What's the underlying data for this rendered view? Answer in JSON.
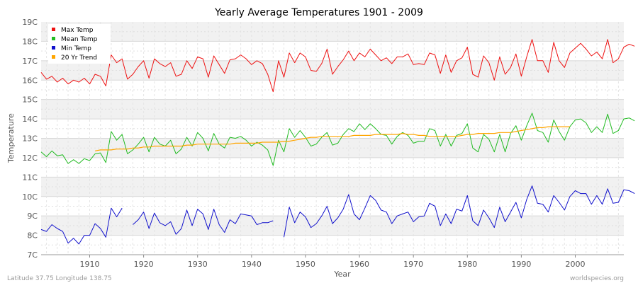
{
  "footer": {
    "location": "Latitude 37.75 Longitude 138.75",
    "source": "worldspecies.org"
  },
  "colors": {
    "max": "#ee1111",
    "mean": "#22bb22",
    "min": "#1111cc",
    "trend": "#ffa500"
  },
  "chart_data": {
    "type": "line",
    "title": "Yearly Average Temperatures 1901 - 2009",
    "xlabel": "Year",
    "ylabel": "Temperature",
    "xlim": [
      1901,
      2009
    ],
    "ylim": [
      7,
      19
    ],
    "x_ticks": [
      1910,
      1920,
      1930,
      1940,
      1950,
      1960,
      1970,
      1980,
      1990,
      2000
    ],
    "y_ticks": [
      7,
      8,
      9,
      10,
      11,
      12,
      13,
      14,
      15,
      16,
      17,
      18,
      19
    ],
    "y_tick_labels": [
      "7C",
      "8C",
      "9C",
      "10C",
      "11C",
      "12C",
      "13C",
      "14C",
      "15C",
      "16C",
      "17C",
      "18C",
      "19C"
    ],
    "legend_position": "top-left",
    "series": [
      {
        "name": "Max Temp",
        "color_key": "max",
        "x_start": 1901,
        "values": [
          16.4,
          16.05,
          16.2,
          15.9,
          16.1,
          15.8,
          16.0,
          15.9,
          16.1,
          15.8,
          16.3,
          16.2,
          15.7,
          17.3,
          16.9,
          17.1,
          16.05,
          16.3,
          16.7,
          17.0,
          16.1,
          17.1,
          16.85,
          16.7,
          16.9,
          16.2,
          16.3,
          17.0,
          16.6,
          17.2,
          17.1,
          16.15,
          17.25,
          16.8,
          16.35,
          17.05,
          17.1,
          17.3,
          17.1,
          16.8,
          17.0,
          16.85,
          16.3,
          15.4,
          17.0,
          16.15,
          17.4,
          16.9,
          17.4,
          17.2,
          16.5,
          16.45,
          16.85,
          17.6,
          16.3,
          16.7,
          17.05,
          17.5,
          17.0,
          17.4,
          17.2,
          17.6,
          17.3,
          17.0,
          17.15,
          16.85,
          17.2,
          17.2,
          17.35,
          16.8,
          16.85,
          16.8,
          17.4,
          17.3,
          16.35,
          17.3,
          16.4,
          17.0,
          17.15,
          17.7,
          16.3,
          16.15,
          17.25,
          16.9,
          16.0,
          17.2,
          16.3,
          16.65,
          17.35,
          16.2,
          17.2,
          18.1,
          17.0,
          17.0,
          16.4,
          17.95,
          17.0,
          16.65,
          17.4,
          17.65,
          17.9,
          17.6,
          17.25,
          17.45,
          17.1,
          18.1,
          16.9,
          17.1,
          17.7,
          17.85,
          17.75
        ]
      },
      {
        "name": "Mean Temp",
        "color_key": "mean",
        "x_start": 1901,
        "values": [
          12.3,
          12.05,
          12.35,
          12.1,
          12.15,
          11.7,
          11.9,
          11.7,
          11.95,
          11.85,
          12.2,
          12.25,
          11.75,
          13.35,
          12.9,
          13.2,
          12.2,
          12.4,
          12.7,
          13.05,
          12.3,
          13.05,
          12.7,
          12.6,
          12.9,
          12.2,
          12.45,
          13.05,
          12.6,
          13.3,
          13.0,
          12.35,
          13.25,
          12.7,
          12.5,
          13.05,
          13.0,
          13.1,
          12.9,
          12.6,
          12.8,
          12.65,
          12.4,
          11.6,
          12.9,
          12.3,
          13.5,
          13.05,
          13.4,
          13.05,
          12.6,
          12.7,
          13.05,
          13.3,
          12.65,
          12.75,
          13.2,
          13.5,
          13.35,
          13.75,
          13.45,
          13.75,
          13.5,
          13.2,
          13.15,
          12.7,
          13.1,
          13.3,
          13.15,
          12.75,
          12.85,
          12.85,
          13.5,
          13.4,
          12.6,
          13.2,
          12.6,
          13.15,
          13.25,
          13.75,
          12.5,
          12.3,
          13.2,
          12.95,
          12.3,
          13.2,
          12.3,
          13.25,
          13.65,
          12.9,
          13.65,
          14.3,
          13.4,
          13.3,
          12.8,
          13.95,
          13.35,
          12.9,
          13.6,
          13.95,
          14.0,
          13.8,
          13.3,
          13.6,
          13.3,
          14.25,
          13.25,
          13.4,
          14.0,
          14.05,
          13.9
        ]
      },
      {
        "name": "Min Temp",
        "color_key": "min",
        "x_start": 1901,
        "values": [
          8.3,
          8.2,
          8.55,
          8.35,
          8.2,
          7.6,
          7.85,
          7.55,
          8.0,
          8.0,
          8.6,
          8.35,
          7.9,
          9.4,
          8.95,
          9.4,
          null,
          8.55,
          8.8,
          9.2,
          8.35,
          9.15,
          8.65,
          8.5,
          8.7,
          8.05,
          8.35,
          9.3,
          8.5,
          9.35,
          9.1,
          8.3,
          9.35,
          8.55,
          8.15,
          8.8,
          8.6,
          9.1,
          9.05,
          9.0,
          8.55,
          8.65,
          8.65,
          8.75,
          null,
          7.9,
          9.45,
          8.65,
          9.2,
          8.95,
          8.4,
          8.6,
          9.0,
          9.5,
          8.6,
          8.9,
          9.35,
          10.1,
          9.1,
          8.8,
          9.4,
          10.05,
          9.8,
          9.3,
          9.2,
          8.6,
          9.0,
          9.1,
          9.2,
          8.7,
          8.95,
          9.0,
          9.65,
          9.5,
          8.5,
          9.1,
          8.6,
          9.35,
          9.25,
          10.05,
          8.75,
          8.5,
          9.3,
          8.9,
          8.4,
          9.45,
          8.7,
          9.2,
          9.7,
          8.9,
          9.85,
          10.55,
          9.65,
          9.6,
          9.2,
          10.05,
          9.7,
          9.3,
          10.0,
          10.3,
          10.15,
          10.15,
          9.6,
          10.05,
          9.6,
          10.4,
          9.65,
          9.7,
          10.35,
          10.3,
          10.15
        ]
      },
      {
        "name": "20 Yr Trend",
        "color_key": "trend",
        "x_start": 1911,
        "values": [
          12.35,
          12.4,
          12.4,
          12.4,
          12.45,
          12.45,
          12.45,
          12.5,
          12.5,
          12.55,
          12.55,
          12.6,
          12.6,
          12.6,
          12.6,
          12.6,
          12.6,
          12.65,
          12.65,
          12.7,
          12.7,
          12.7,
          12.7,
          12.7,
          12.7,
          12.7,
          12.75,
          12.75,
          12.75,
          12.75,
          12.75,
          12.8,
          12.8,
          12.8,
          12.8,
          12.85,
          12.85,
          12.9,
          12.95,
          13.0,
          13.05,
          13.05,
          13.1,
          13.1,
          13.1,
          13.1,
          13.1,
          13.1,
          13.15,
          13.15,
          13.15,
          13.15,
          13.2,
          13.2,
          13.2,
          13.2,
          13.2,
          13.25,
          13.2,
          13.2,
          13.15,
          13.15,
          13.1,
          13.1,
          13.1,
          13.1,
          13.1,
          13.1,
          13.15,
          13.2,
          13.2,
          13.25,
          13.25,
          13.25,
          13.25,
          13.3,
          13.3,
          13.3,
          13.35,
          13.4,
          13.45,
          13.5,
          13.55,
          13.55,
          13.6,
          13.6,
          13.6,
          13.6,
          13.6
        ]
      }
    ]
  }
}
